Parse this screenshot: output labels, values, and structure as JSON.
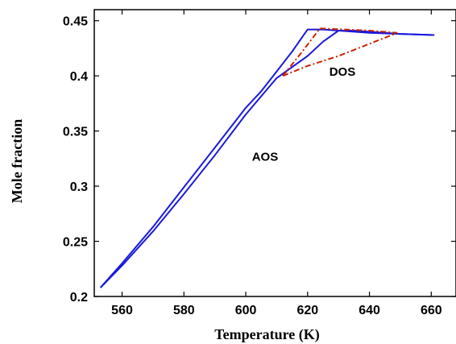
{
  "chart_data": {
    "type": "line",
    "title": "",
    "xlabel": "Temperature (K)",
    "ylabel": "Mole fraction",
    "xlim": [
      551,
      668
    ],
    "ylim": [
      0.2,
      0.46
    ],
    "xticks": [
      560,
      580,
      600,
      620,
      640,
      660
    ],
    "yticks": [
      0.2,
      0.25,
      0.3,
      0.35,
      0.4,
      0.45
    ],
    "ytick_labels": [
      "0.2",
      "0.25",
      "0.3",
      "0.35",
      "0.4",
      "0.45"
    ],
    "grid": false,
    "legend": "none",
    "annotations": [
      {
        "text": "AOS",
        "x": 602,
        "y": 0.323
      },
      {
        "text": "DOS",
        "x": 627,
        "y": 0.4
      }
    ],
    "series": [
      {
        "style": "solid",
        "color": "#1a1adb",
        "x": [
          553,
          560,
          570,
          580,
          590,
          600,
          605,
          610,
          615,
          620,
          625,
          630,
          640,
          650,
          661
        ],
        "y": [
          0.208,
          0.23,
          0.263,
          0.299,
          0.335,
          0.371,
          0.386,
          0.404,
          0.422,
          0.442,
          0.442,
          0.441,
          0.439,
          0.438,
          0.437
        ]
      },
      {
        "style": "solid",
        "color": "#1a1adb",
        "x": [
          553,
          560,
          570,
          580,
          590,
          600,
          610,
          620,
          625,
          630,
          635,
          640,
          650,
          661
        ],
        "y": [
          0.208,
          0.228,
          0.259,
          0.293,
          0.328,
          0.365,
          0.398,
          0.418,
          0.431,
          0.441,
          0.441,
          0.44,
          0.438,
          0.437
        ]
      },
      {
        "style": "dash-dot",
        "color": "#cc2200",
        "x": [
          612,
          618,
          624,
          632,
          640,
          649
        ],
        "y": [
          0.4,
          0.421,
          0.443,
          0.442,
          0.441,
          0.439
        ]
      },
      {
        "style": "dash-dot",
        "color": "#cc2200",
        "x": [
          612,
          620,
          630,
          640,
          649
        ],
        "y": [
          0.4,
          0.409,
          0.418,
          0.429,
          0.439
        ]
      }
    ]
  }
}
